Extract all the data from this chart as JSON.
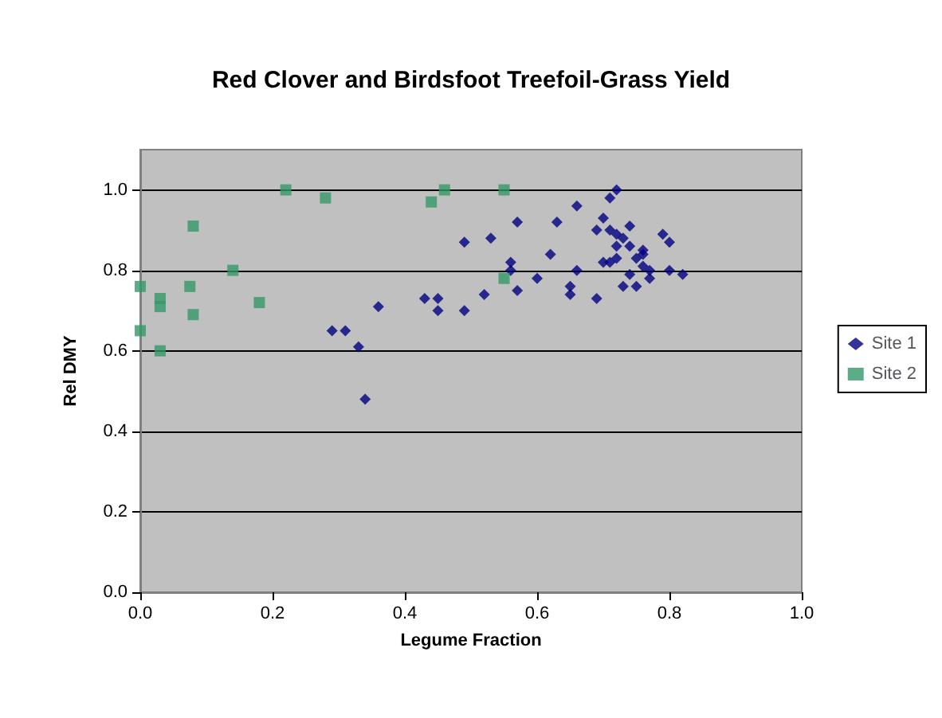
{
  "chart_data": {
    "type": "scatter",
    "title": "Red Clover and Birdsfoot Treefoil-Grass Yield",
    "xlabel": "Legume Fraction",
    "ylabel": "Rel DMY",
    "xlim": [
      0,
      1.0
    ],
    "ylim": [
      0,
      1.1
    ],
    "xticks": [
      {
        "value": 0,
        "label": "0.0"
      },
      {
        "value": 0.2,
        "label": "0.2"
      },
      {
        "value": 0.4,
        "label": "0.4"
      },
      {
        "value": 0.6,
        "label": "0.6"
      },
      {
        "value": 0.8,
        "label": "0.8"
      },
      {
        "value": 1.0,
        "label": "1.0"
      }
    ],
    "yticks": [
      {
        "value": 0,
        "label": "0.0"
      },
      {
        "value": 0.2,
        "label": "0.2"
      },
      {
        "value": 0.4,
        "label": "0.4"
      },
      {
        "value": 0.6,
        "label": "0.6"
      },
      {
        "value": 0.8,
        "label": "0.8"
      },
      {
        "value": 1.0,
        "label": "1.0"
      }
    ],
    "grid": "y",
    "legend": "right",
    "series": [
      {
        "name": "Site 1",
        "color": "#000080",
        "marker": "diamond",
        "x": [
          0.49,
          0.36,
          0.43,
          0.45,
          0.45,
          0.49,
          0.29,
          0.31,
          0.33,
          0.34,
          0.72,
          0.71,
          0.66,
          0.57,
          0.63,
          0.7,
          0.74,
          0.69,
          0.71,
          0.53,
          0.72,
          0.73,
          0.79,
          0.8,
          0.72,
          0.74,
          0.76,
          0.76,
          0.62,
          0.7,
          0.71,
          0.72,
          0.75,
          0.56,
          0.56,
          0.66,
          0.76,
          0.77,
          0.8,
          0.82,
          0.74,
          0.6,
          0.52,
          0.57,
          0.65,
          0.65,
          0.69,
          0.73,
          0.75,
          0.77
        ],
        "values": [
          0.87,
          0.71,
          0.73,
          0.73,
          0.7,
          0.7,
          0.65,
          0.65,
          0.61,
          0.48,
          1.0,
          0.98,
          0.96,
          0.92,
          0.92,
          0.93,
          0.91,
          0.9,
          0.9,
          0.88,
          0.89,
          0.88,
          0.89,
          0.87,
          0.86,
          0.86,
          0.85,
          0.84,
          0.84,
          0.82,
          0.82,
          0.83,
          0.83,
          0.82,
          0.8,
          0.8,
          0.81,
          0.8,
          0.8,
          0.79,
          0.79,
          0.78,
          0.74,
          0.75,
          0.76,
          0.74,
          0.73,
          0.76,
          0.76,
          0.78
        ]
      },
      {
        "name": "Site 2",
        "color": "#339966",
        "marker": "square",
        "x": [
          0.0,
          0.0,
          0.03,
          0.03,
          0.03,
          0.075,
          0.08,
          0.08,
          0.14,
          0.18,
          0.22,
          0.28,
          0.44,
          0.46,
          0.55,
          0.55
        ],
        "values": [
          0.76,
          0.65,
          0.73,
          0.71,
          0.6,
          0.76,
          0.69,
          0.91,
          0.8,
          0.72,
          1.0,
          0.98,
          0.97,
          1.0,
          1.0,
          0.78
        ]
      }
    ]
  }
}
